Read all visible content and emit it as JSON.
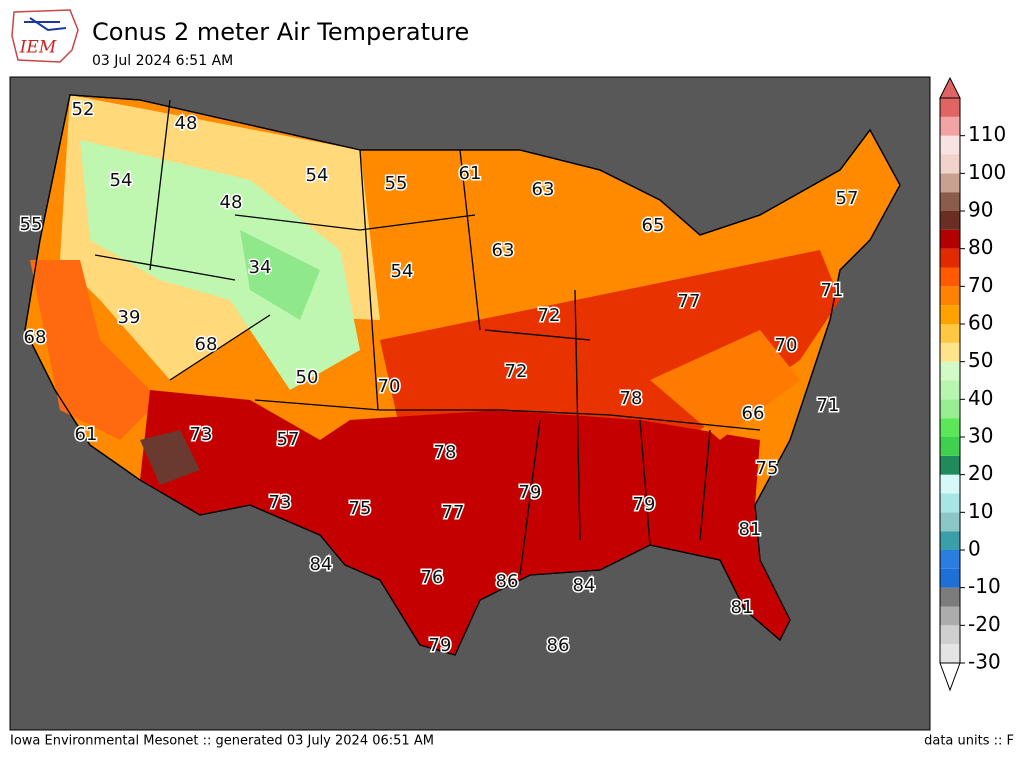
{
  "header": {
    "logo_text": "IEM",
    "title": "Conus 2 meter Air Temperature",
    "subtitle": "03 Jul 2024 6:51 AM"
  },
  "footer": {
    "left": "Iowa Environmental Mesonet :: generated 03 July 2024 06:51 AM",
    "right": "data units :: F"
  },
  "colorbar": {
    "clim": [
      -30,
      120
    ],
    "ticks": [
      -30,
      -20,
      -10,
      0,
      10,
      20,
      30,
      40,
      50,
      60,
      70,
      80,
      90,
      100,
      110
    ],
    "colors": [
      "#e4e4e4",
      "#cfcfcf",
      "#acacac",
      "#7c7c7c",
      "#1e6fd6",
      "#2a7ee0",
      "#3a9fa8",
      "#8cc7c7",
      "#a8e6e6",
      "#d6f8f8",
      "#1f8a5a",
      "#3fd04f",
      "#5ae85a",
      "#98ee90",
      "#b8f5ae",
      "#d2fac6",
      "#ffe38a",
      "#ffc840",
      "#ffa200",
      "#ff8200",
      "#ff5a00",
      "#e02a00",
      "#b30000",
      "#6a2f22",
      "#8c5c4a",
      "#c9a191",
      "#f1d3cb",
      "#f8e2e2",
      "#f2a3a3",
      "#e06464"
    ]
  },
  "stations": [
    52,
    48,
    54,
    54,
    55,
    61,
    63,
    55,
    48,
    65,
    63,
    57,
    34,
    54,
    39,
    68,
    68,
    72,
    77,
    71,
    70,
    50,
    70,
    72,
    78,
    66,
    71,
    61,
    73,
    57,
    78,
    79,
    75,
    73,
    75,
    77,
    79,
    81,
    84,
    76,
    86,
    84,
    81,
    79,
    86
  ]
}
